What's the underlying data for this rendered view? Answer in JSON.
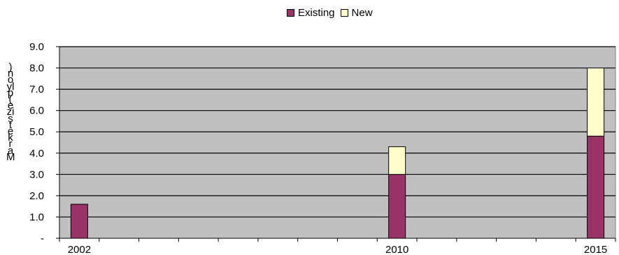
{
  "chart_data": {
    "type": "bar",
    "stacked": true,
    "title": "",
    "xlabel": "",
    "ylabel": "Markets size (pylons)",
    "ylabel_printed": ")noylp( ezis tekraM",
    "ylim": [
      0,
      9.0
    ],
    "ytick_labels": [
      "-",
      "1.0",
      "2.0",
      "3.0",
      "4.0",
      "5.0",
      "6.0",
      "7.0",
      "8.0",
      "9.0"
    ],
    "x_positions": [
      2002,
      2003,
      2004,
      2005,
      2006,
      2007,
      2008,
      2009,
      2010,
      2011,
      2012,
      2013,
      2014,
      2015
    ],
    "x_tick_labels": [
      {
        "x": 2002,
        "label": "2002"
      },
      {
        "x": 2010,
        "label": "2010"
      },
      {
        "x": 2015,
        "label": "2015"
      }
    ],
    "series": [
      {
        "name": "Existing",
        "color": "#993366",
        "points": [
          {
            "x": 2002,
            "y": 1.6
          },
          {
            "x": 2010,
            "y": 3.0
          },
          {
            "x": 2015,
            "y": 4.8
          }
        ]
      },
      {
        "name": "New",
        "color": "#ffffcc",
        "points": [
          {
            "x": 2002,
            "y": 0
          },
          {
            "x": 2010,
            "y": 1.3
          },
          {
            "x": 2015,
            "y": 3.2
          }
        ]
      }
    ],
    "legend_position": "top-center",
    "grid": true,
    "plot_background": "#c0c0c0"
  }
}
